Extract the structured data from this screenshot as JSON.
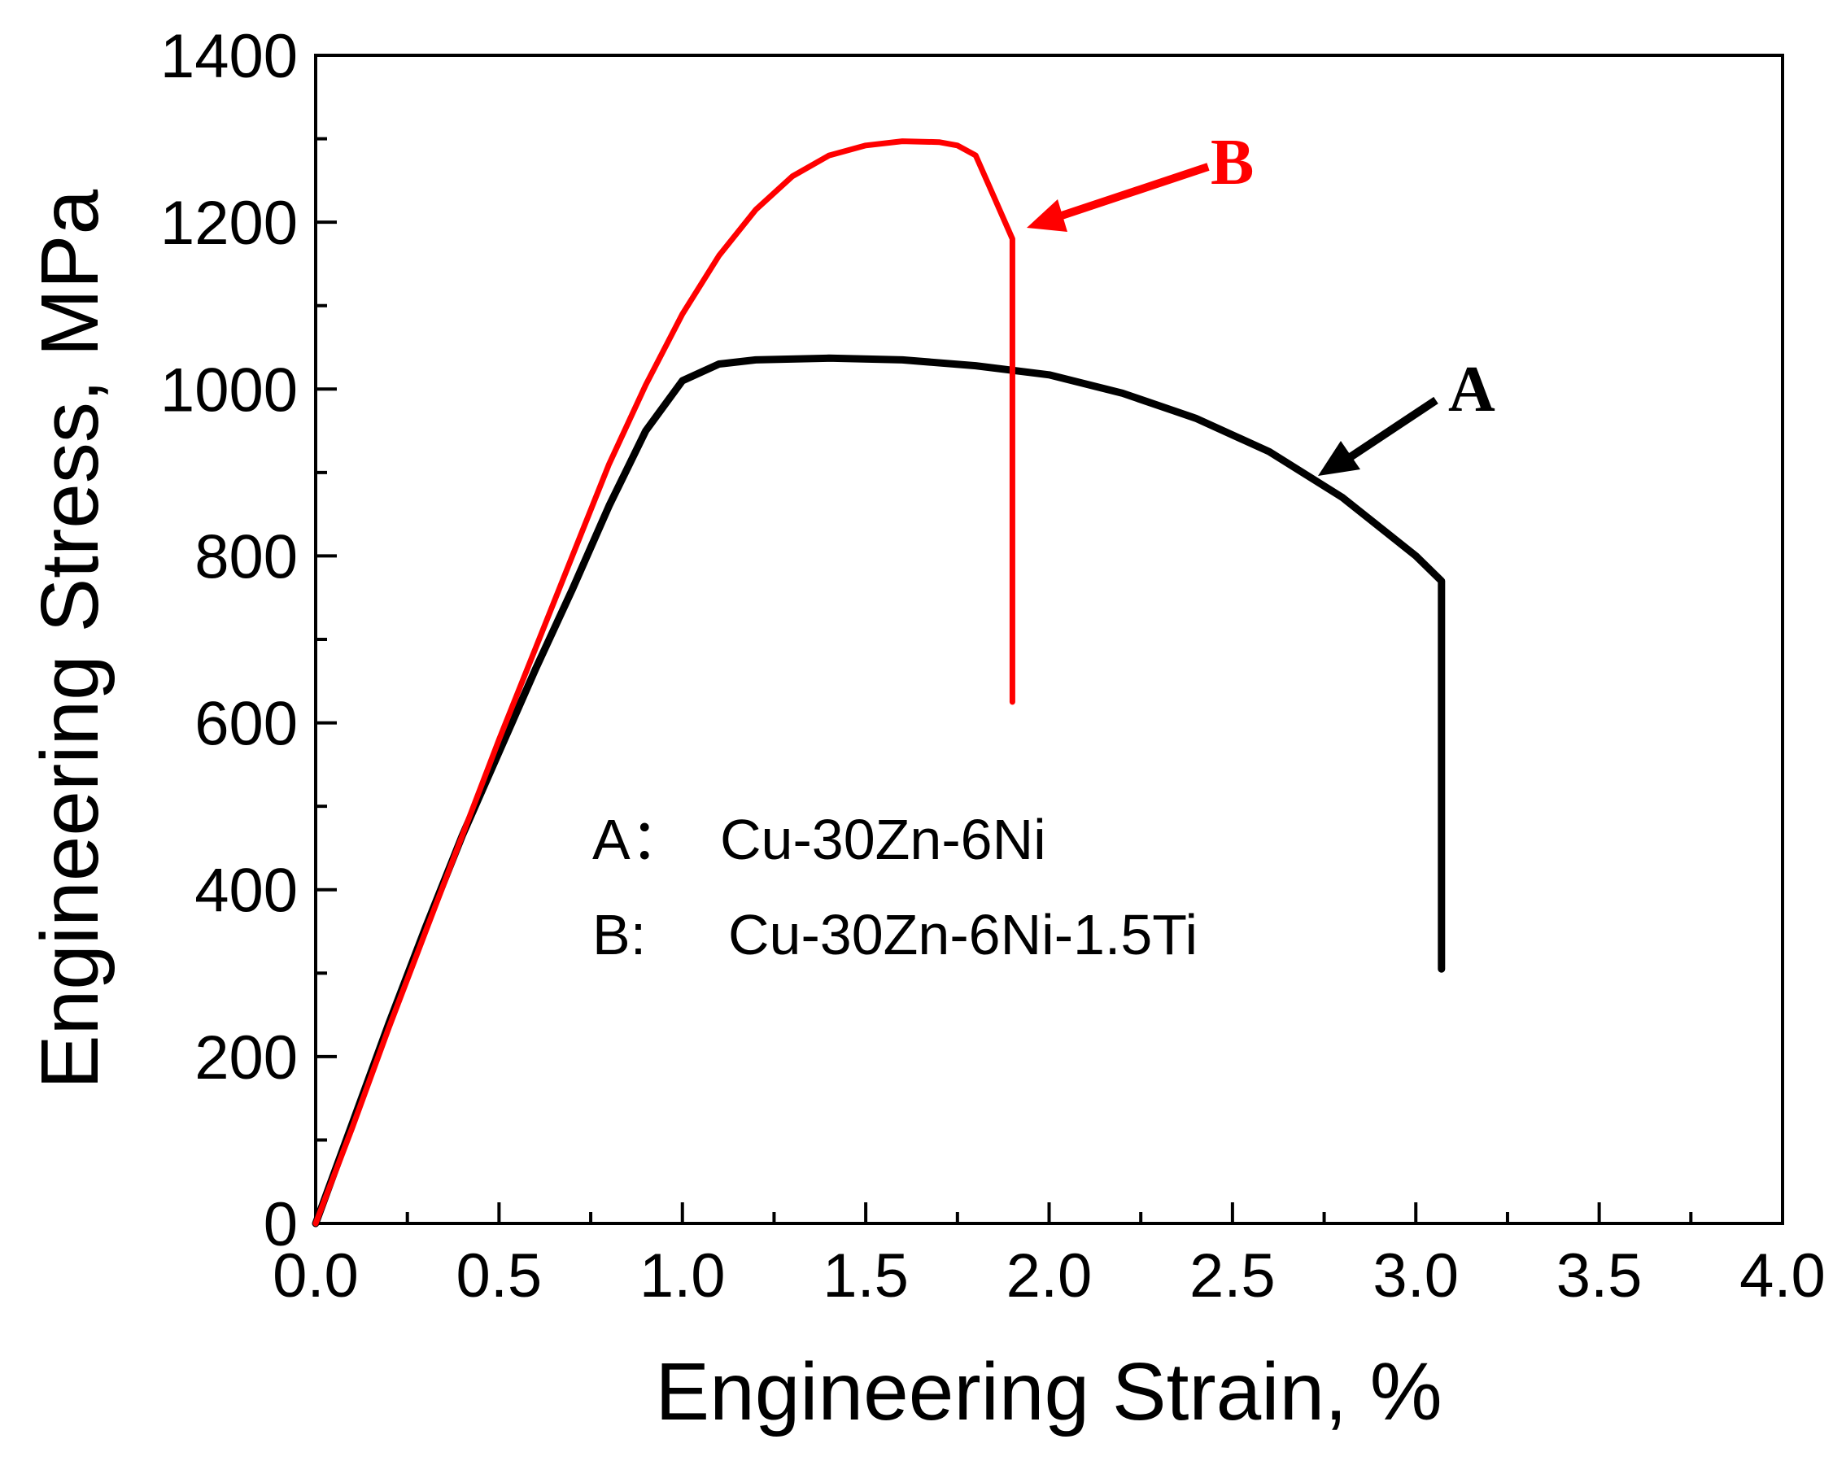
{
  "chart_data": {
    "type": "line",
    "xlabel": "Engineering Strain, %",
    "ylabel": "Engineering Stress, MPa",
    "xlim": [
      0,
      4.0
    ],
    "ylim": [
      0,
      1400
    ],
    "xticks": [
      "0.0",
      "0.5",
      "1.0",
      "1.5",
      "2.0",
      "2.5",
      "3.0",
      "3.5",
      "4.0"
    ],
    "yticks": [
      "0",
      "200",
      "400",
      "600",
      "800",
      "1000",
      "1200",
      "1400"
    ],
    "legend": [
      {
        "key": "A：",
        "label": "Cu-30Zn-6Ni"
      },
      {
        "key": "B:",
        "label": "Cu-30Zn-6Ni-1.5Ti"
      }
    ],
    "series": [
      {
        "name": "A",
        "color": "#000000",
        "x": [
          0,
          0.1,
          0.2,
          0.3,
          0.4,
          0.5,
          0.6,
          0.7,
          0.8,
          0.9,
          1.0,
          1.1,
          1.2,
          1.4,
          1.6,
          1.8,
          2.0,
          2.2,
          2.4,
          2.6,
          2.8,
          3.0,
          3.07,
          3.07
        ],
        "y": [
          0,
          120,
          240,
          355,
          465,
          565,
          665,
          760,
          860,
          950,
          1010,
          1030,
          1035,
          1037,
          1035,
          1028,
          1017,
          995,
          965,
          925,
          870,
          800,
          770,
          305
        ]
      },
      {
        "name": "B",
        "color": "#ff0000",
        "x": [
          0,
          0.1,
          0.2,
          0.3,
          0.4,
          0.5,
          0.6,
          0.7,
          0.8,
          0.9,
          1.0,
          1.1,
          1.2,
          1.3,
          1.4,
          1.5,
          1.6,
          1.7,
          1.75,
          1.8,
          1.85,
          1.9,
          1.9
        ],
        "y": [
          0,
          115,
          235,
          350,
          465,
          580,
          690,
          800,
          910,
          1005,
          1090,
          1160,
          1215,
          1255,
          1280,
          1292,
          1297,
          1296,
          1292,
          1280,
          1230,
          1180,
          625
        ]
      }
    ],
    "annotations": [
      {
        "text": "A",
        "color": "#000000",
        "points_to": {
          "x": 2.7,
          "y": 905
        }
      },
      {
        "text": "B",
        "color": "#ff0000",
        "points_to": {
          "x": 1.9,
          "y": 1190
        }
      }
    ]
  }
}
